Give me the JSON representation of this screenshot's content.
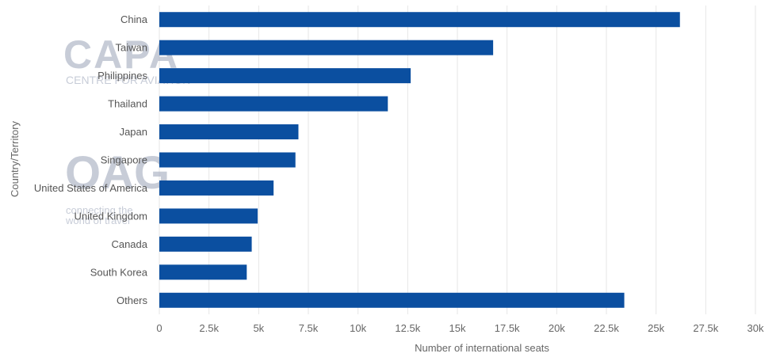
{
  "chart_data": {
    "type": "bar",
    "orientation": "horizontal",
    "categories": [
      "China",
      "Taiwan",
      "Philippines",
      "Thailand",
      "Japan",
      "Singapore",
      "United States of America",
      "United Kingdom",
      "Canada",
      "South Korea",
      "Others"
    ],
    "values": [
      26200,
      16800,
      12650,
      11500,
      7000,
      6850,
      5750,
      4950,
      4650,
      4400,
      23400
    ],
    "xlabel": "Number of international seats",
    "ylabel": "Country/Territory",
    "xlim": [
      0,
      30000
    ],
    "xticks": [
      0,
      2500,
      5000,
      7500,
      10000,
      12500,
      15000,
      17500,
      20000,
      22500,
      25000,
      27500,
      30000
    ],
    "xtick_labels": [
      "0",
      "2.5k",
      "5k",
      "7.5k",
      "10k",
      "12.5k",
      "15k",
      "17.5k",
      "20k",
      "22.5k",
      "25k",
      "27.5k",
      "30k"
    ],
    "grid": true,
    "bar_color": "#0b4fa0",
    "grid_color": "#e6e6e6"
  },
  "watermarks": {
    "capa_logo": "CAPA",
    "capa_sub": "CENTRE FOR AVIATION",
    "oag_logo": "OAG",
    "oag_tagline_1": "connecting the",
    "oag_tagline_2": "world of travel"
  }
}
